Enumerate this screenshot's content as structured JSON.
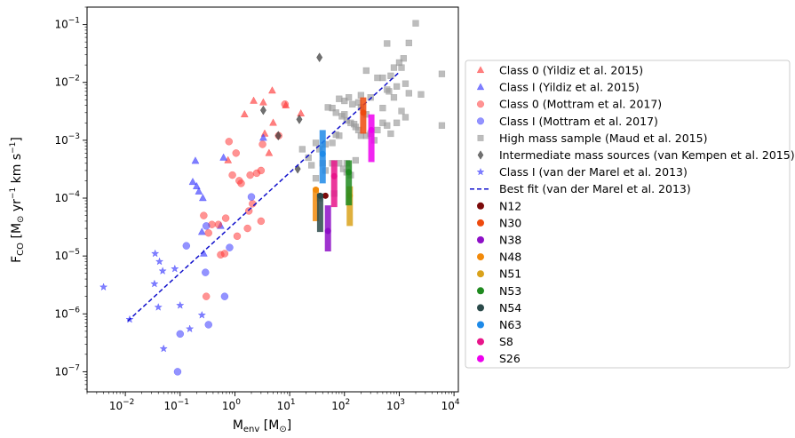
{
  "chart_data": {
    "type": "scatter",
    "xlabel": "M_env [M_sun]",
    "ylabel": "F_CO [M_sun yr^-1 km s^-1]",
    "xscale": "log",
    "yscale": "log",
    "xlim": [
      0.002,
      12000
    ],
    "ylim": [
      4.5e-08,
      0.2
    ],
    "x_ticks": [
      {
        "value": 0.01,
        "base": "10",
        "exp": "−2"
      },
      {
        "value": 0.1,
        "base": "10",
        "exp": "−1"
      },
      {
        "value": 1,
        "base": "10",
        "exp": "0"
      },
      {
        "value": 10,
        "base": "10",
        "exp": "1"
      },
      {
        "value": 100,
        "base": "10",
        "exp": "2"
      },
      {
        "value": 1000,
        "base": "10",
        "exp": "3"
      },
      {
        "value": 10000,
        "base": "10",
        "exp": "4"
      }
    ],
    "y_ticks": [
      {
        "value": 1e-07,
        "base": "10",
        "exp": "−7"
      },
      {
        "value": 1e-06,
        "base": "10",
        "exp": "−6"
      },
      {
        "value": 1e-05,
        "base": "10",
        "exp": "−5"
      },
      {
        "value": 0.0001,
        "base": "10",
        "exp": "−4"
      },
      {
        "value": 0.001,
        "base": "10",
        "exp": "−3"
      },
      {
        "value": 0.01,
        "base": "10",
        "exp": "−2"
      },
      {
        "value": 0.1,
        "base": "10",
        "exp": "−1"
      }
    ],
    "grid": false,
    "legend_position": "right",
    "series": [
      {
        "name": "Class 0 (Yildiz et al. 2015)",
        "marker": "triangle",
        "color": "#ff3b3b",
        "alpha": 0.65,
        "points": [
          [
            1.5,
            0.0028
          ],
          [
            2.2,
            0.0048
          ],
          [
            3.3,
            0.0045
          ],
          [
            4.8,
            0.0072
          ],
          [
            8.5,
            0.004
          ],
          [
            5.0,
            0.002
          ],
          [
            3.5,
            0.0013
          ],
          [
            4.2,
            0.0006
          ],
          [
            16,
            0.0029
          ],
          [
            0.75,
            0.00045
          ]
        ]
      },
      {
        "name": "Class I (Yildiz et al. 2015)",
        "marker": "triangle",
        "color": "#3b3bff",
        "alpha": 0.65,
        "points": [
          [
            0.19,
            0.00044
          ],
          [
            0.2,
            0.00016
          ],
          [
            0.17,
            0.00019
          ],
          [
            0.22,
            0.00013
          ],
          [
            0.26,
            0.0001
          ],
          [
            0.62,
            0.0005
          ],
          [
            0.25,
            2.6e-05
          ],
          [
            0.27,
            1.1e-05
          ],
          [
            3.3,
            0.0011
          ],
          [
            0.55,
            3.3e-05
          ]
        ]
      },
      {
        "name": "Class 0 (Mottram et al. 2017)",
        "marker": "circle",
        "color": "#ff3b3b",
        "alpha": 0.55,
        "points": [
          [
            0.78,
            0.00095
          ],
          [
            1.05,
            0.0006
          ],
          [
            0.9,
            0.00025
          ],
          [
            1.2,
            0.0002
          ],
          [
            1.3,
            0.00018
          ],
          [
            1.9,
            0.00025
          ],
          [
            2.5,
            0.00027
          ],
          [
            3,
            0.0003
          ],
          [
            3.2,
            0.00085
          ],
          [
            6.3,
            0.0012
          ],
          [
            8.2,
            0.0042
          ],
          [
            2.1,
            8e-05
          ],
          [
            0.27,
            5e-05
          ],
          [
            0.38,
            3.5e-05
          ],
          [
            0.5,
            3.5e-05
          ],
          [
            0.68,
            4.5e-05
          ],
          [
            1.8,
            6e-05
          ],
          [
            0.33,
            2.5e-05
          ],
          [
            0.55,
            1.05e-05
          ],
          [
            0.65,
            1.1e-05
          ],
          [
            1.1,
            2.2e-05
          ],
          [
            1.7,
            3e-05
          ],
          [
            3.0,
            4e-05
          ],
          [
            0.3,
            2e-06
          ]
        ]
      },
      {
        "name": "Class I (Mottram et al. 2017)",
        "marker": "circle",
        "color": "#3b3bff",
        "alpha": 0.55,
        "points": [
          [
            0.3,
            3.3e-05
          ],
          [
            0.13,
            1.5e-05
          ],
          [
            0.29,
            5.2e-06
          ],
          [
            0.8,
            1.4e-05
          ],
          [
            2.0,
            0.000105
          ],
          [
            0.65,
            2e-06
          ],
          [
            0.33,
            6.5e-07
          ],
          [
            0.1,
            4.5e-07
          ],
          [
            0.09,
            1e-07
          ]
        ]
      },
      {
        "name": "High mass sample (Maud et al. 2015)",
        "marker": "square",
        "color": "#999999",
        "alpha": 0.65,
        "points": [
          [
            2000,
            0.105
          ],
          [
            1500,
            0.048
          ],
          [
            600,
            0.047
          ],
          [
            1200,
            0.026
          ],
          [
            1000,
            0.022
          ],
          [
            1100,
            0.018
          ],
          [
            800,
            0.018
          ],
          [
            700,
            0.013
          ],
          [
            500,
            0.012
          ],
          [
            400,
            0.012
          ],
          [
            250,
            0.016
          ],
          [
            1300,
            0.0095
          ],
          [
            900,
            0.0085
          ],
          [
            600,
            0.0075
          ],
          [
            650,
            0.007
          ],
          [
            1500,
            0.0065
          ],
          [
            2500,
            0.0062
          ],
          [
            6000,
            0.014
          ],
          [
            6000,
            0.0018
          ],
          [
            800,
            0.0055
          ],
          [
            300,
            0.0055
          ],
          [
            200,
            0.006
          ],
          [
            120,
            0.0055
          ],
          [
            100,
            0.0048
          ],
          [
            180,
            0.0045
          ],
          [
            140,
            0.0042
          ],
          [
            80,
            0.0052
          ],
          [
            60,
            0.0036
          ],
          [
            50,
            0.0037
          ],
          [
            70,
            0.003
          ],
          [
            90,
            0.0026
          ],
          [
            100,
            0.0028
          ],
          [
            110,
            0.0022
          ],
          [
            130,
            0.002
          ],
          [
            150,
            0.0019
          ],
          [
            160,
            0.0017
          ],
          [
            180,
            0.0015
          ],
          [
            200,
            0.0012
          ],
          [
            250,
            0.0012
          ],
          [
            300,
            0.0013
          ],
          [
            350,
            0.001
          ],
          [
            400,
            0.0015
          ],
          [
            500,
            0.002
          ],
          [
            600,
            0.0018
          ],
          [
            900,
            0.002
          ],
          [
            1100,
            0.0032
          ],
          [
            1300,
            0.0025
          ],
          [
            80,
            0.0012
          ],
          [
            70,
            0.00125
          ],
          [
            60,
            0.0009
          ],
          [
            45,
            0.00085
          ],
          [
            35,
            0.0007
          ],
          [
            30,
            0.0009
          ],
          [
            17,
            0.0007
          ],
          [
            22,
            0.0005
          ],
          [
            60,
            0.0004
          ],
          [
            80,
            0.0004
          ],
          [
            95,
            0.00032
          ],
          [
            110,
            0.00028
          ],
          [
            130,
            0.00025
          ],
          [
            110,
            0.0004
          ],
          [
            160,
            0.00045
          ],
          [
            25,
            0.00037
          ],
          [
            40,
            0.0004
          ],
          [
            45,
            0.0003
          ],
          [
            30,
            0.00022
          ],
          [
            65,
            0.00012
          ],
          [
            35,
            0.0001
          ],
          [
            700,
            0.0013
          ],
          [
            500,
            0.0036
          ],
          [
            200,
            0.0037
          ],
          [
            250,
            0.0028
          ]
        ]
      },
      {
        "name": "Intermediate mass sources (van Kempen et al. 2015)",
        "marker": "diamond",
        "color": "#333333",
        "alpha": 0.7,
        "points": [
          [
            35,
            0.027
          ],
          [
            3.3,
            0.0033
          ],
          [
            6.2,
            0.0012
          ],
          [
            15,
            0.0023
          ],
          [
            14,
            0.00032
          ]
        ]
      },
      {
        "name": "Class I (van der Marel et al. 2013)",
        "marker": "star",
        "color": "#3b3bff",
        "alpha": 0.65,
        "points": [
          [
            0.004,
            2.9e-06
          ],
          [
            0.012,
            8e-07
          ],
          [
            0.035,
            1.1e-05
          ],
          [
            0.042,
            8e-06
          ],
          [
            0.048,
            5.5e-06
          ],
          [
            0.034,
            3.3e-06
          ],
          [
            0.05,
            2.5e-07
          ],
          [
            0.04,
            1.3e-06
          ],
          [
            0.08,
            6e-06
          ],
          [
            0.1,
            1.4e-06
          ],
          [
            0.15,
            5.5e-07
          ],
          [
            0.25,
            9.5e-07
          ]
        ]
      }
    ],
    "best_fit": {
      "name": "Best fit (van der Marel et al. 2013)",
      "color": "#1010cc",
      "x": [
        0.011,
        1000
      ],
      "y": [
        7.5e-07,
        0.015
      ]
    },
    "ranges": [
      {
        "name": "N12",
        "color": "#7b0a0a",
        "x": 45,
        "y": [
          0.00011,
          0.00011
        ],
        "dot": 0.00011
      },
      {
        "name": "N30",
        "color": "#ee4a0e",
        "x": 220,
        "y": [
          0.0013,
          0.0055
        ],
        "dot": 0.003
      },
      {
        "name": "N38",
        "color": "#8e0fc7",
        "x": 50,
        "y": [
          1.2e-05,
          7.5e-05
        ],
        "dot": 2.7e-05
      },
      {
        "name": "N48",
        "color": "#f28a0a",
        "x": 30,
        "y": [
          4e-05,
          0.00015
        ],
        "dot": 0.00014
      },
      {
        "name": "N51",
        "color": "#d9a21b",
        "x": 125,
        "y": [
          3.3e-05,
          0.00016
        ],
        "dot": 0.00011
      },
      {
        "name": "N53",
        "color": "#1f8a1f",
        "x": 120,
        "y": [
          7.5e-05,
          0.00045
        ],
        "dot": 0.00028
      },
      {
        "name": "N54",
        "color": "#2b4a4a",
        "x": 36,
        "y": [
          2.6e-05,
          0.00012
        ],
        "dot": 0.00011
      },
      {
        "name": "N63",
        "color": "#1e8ae8",
        "x": 40,
        "y": [
          0.00018,
          0.0015
        ],
        "dot": 0.00058
      },
      {
        "name": "S8",
        "color": "#e8158a",
        "x": 65,
        "y": [
          7e-05,
          0.00045
        ],
        "dot": 0.00024
      },
      {
        "name": "S26",
        "color": "#ee00ee",
        "x": 310,
        "y": [
          0.00042,
          0.0028
        ],
        "dot": 0.0015
      }
    ]
  }
}
